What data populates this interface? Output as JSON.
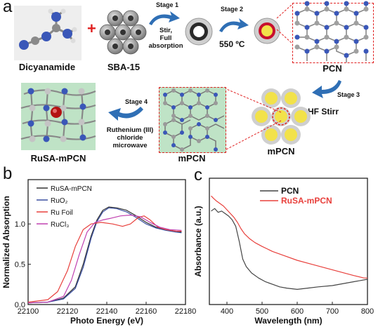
{
  "panel_a": {
    "letter": "a",
    "plus": "+",
    "labels": {
      "dicyanamide": "Dicyanamide",
      "sba15": "SBA-15",
      "pcn": "PCN",
      "mpcn_right": "mPCN",
      "mpcn_mid": "mPCN",
      "rusa": "RuSA-mPCN"
    },
    "stages": {
      "s1": "Stage 1",
      "s1_desc": [
        "Stir,",
        "Full",
        "absorption"
      ],
      "s2": "Stage 2",
      "s2_desc": "550 ºC",
      "s3": "Stage 3",
      "s3_desc": "HF Stirr",
      "s4": "Stage 4",
      "s4_desc": [
        "Ruthenium (III)",
        "chloride",
        "microwave"
      ]
    },
    "colors": {
      "red_dash": "#e02020",
      "arrow_blue": "#2f6fb5",
      "pcn_bg": "#ffffff",
      "mpcn_bg": "#bfe3c6"
    }
  },
  "chart_data": [
    {
      "panel": "b",
      "type": "line",
      "xlabel": "Photo Energy (eV)",
      "ylabel": "Normalized Absorption",
      "xlim": [
        22100,
        22180
      ],
      "ylim": [
        0,
        1.55
      ],
      "xticks": [
        "22100",
        "22120",
        "22140",
        "22160",
        "22180"
      ],
      "yticks": [
        "0.0",
        "0.5",
        "1.0"
      ],
      "legend_position": "top-right",
      "series": [
        {
          "name": "RuSA-mPCN",
          "legend": "RuSA-mPCN",
          "color": "#333333",
          "x": [
            22100,
            22110,
            22118,
            22124,
            22128,
            22132,
            22135,
            22138,
            22141,
            22145,
            22150,
            22155,
            22160,
            22165,
            22170,
            22175,
            22178
          ],
          "y": [
            0.02,
            0.03,
            0.08,
            0.22,
            0.5,
            0.85,
            1.05,
            1.17,
            1.21,
            1.2,
            1.17,
            1.1,
            1.02,
            0.96,
            0.93,
            0.91,
            0.9
          ]
        },
        {
          "name": "RuO2",
          "legend": "RuO₂",
          "color": "#3a4fa0",
          "x": [
            22100,
            22110,
            22118,
            22124,
            22128,
            22132,
            22135,
            22138,
            22141,
            22145,
            22150,
            22155,
            22160,
            22165,
            22170,
            22175,
            22178
          ],
          "y": [
            0.02,
            0.03,
            0.07,
            0.2,
            0.46,
            0.82,
            1.03,
            1.15,
            1.2,
            1.19,
            1.15,
            1.08,
            1.0,
            0.95,
            0.92,
            0.9,
            0.89
          ]
        },
        {
          "name": "Ru Foil",
          "legend": "Ru Foil",
          "color": "#e8403c",
          "x": [
            22100,
            22110,
            22115,
            22120,
            22124,
            22128,
            22132,
            22137,
            22143,
            22148,
            22152,
            22156,
            22159,
            22162,
            22166,
            22170,
            22175,
            22178
          ],
          "y": [
            0.03,
            0.06,
            0.16,
            0.42,
            0.72,
            0.93,
            1.0,
            1.02,
            1.0,
            0.97,
            1.0,
            1.08,
            1.1,
            1.05,
            0.96,
            0.93,
            0.91,
            0.91
          ]
        },
        {
          "name": "RuCl3",
          "legend": "RuCl₃",
          "color": "#c040b0",
          "x": [
            22100,
            22110,
            22118,
            22122,
            22126,
            22130,
            22134,
            22138,
            22142,
            22147,
            22152,
            22157,
            22162,
            22167,
            22172,
            22178
          ],
          "y": [
            0.02,
            0.03,
            0.1,
            0.3,
            0.62,
            0.9,
            1.02,
            1.05,
            1.07,
            1.1,
            1.11,
            1.09,
            1.02,
            0.96,
            0.93,
            0.92
          ]
        }
      ]
    },
    {
      "panel": "c",
      "type": "line",
      "xlabel": "Wavelength (nm)",
      "ylabel": "Absorbance (a.u.)",
      "xlim": [
        350,
        800
      ],
      "ylim": [
        0,
        1
      ],
      "xticks": [
        "400",
        "500",
        "600",
        "700",
        "800"
      ],
      "legend_position": "top-right",
      "series": [
        {
          "name": "PCN",
          "legend": "PCN",
          "color": "#444444",
          "x": [
            355,
            365,
            375,
            385,
            395,
            405,
            415,
            425,
            435,
            445,
            455,
            470,
            490,
            510,
            530,
            550,
            570,
            600,
            630,
            660,
            700,
            740,
            780,
            800
          ],
          "y": [
            0.74,
            0.76,
            0.73,
            0.74,
            0.72,
            0.7,
            0.67,
            0.62,
            0.5,
            0.36,
            0.3,
            0.25,
            0.21,
            0.18,
            0.16,
            0.14,
            0.13,
            0.12,
            0.13,
            0.14,
            0.15,
            0.17,
            0.19,
            0.2
          ]
        },
        {
          "name": "RuSA-mPCN",
          "legend": "RuSA-mPCN",
          "color": "#e8403c",
          "x": [
            355,
            362,
            370,
            380,
            390,
            400,
            410,
            420,
            430,
            440,
            450,
            465,
            480,
            500,
            530,
            560,
            600,
            640,
            680,
            720,
            760,
            790,
            800
          ],
          "y": [
            0.86,
            0.84,
            0.82,
            0.8,
            0.78,
            0.75,
            0.72,
            0.69,
            0.65,
            0.6,
            0.56,
            0.52,
            0.49,
            0.46,
            0.42,
            0.39,
            0.35,
            0.32,
            0.29,
            0.26,
            0.23,
            0.21,
            0.21
          ]
        }
      ]
    }
  ],
  "panel_b_letter": "b",
  "panel_c_letter": "c"
}
